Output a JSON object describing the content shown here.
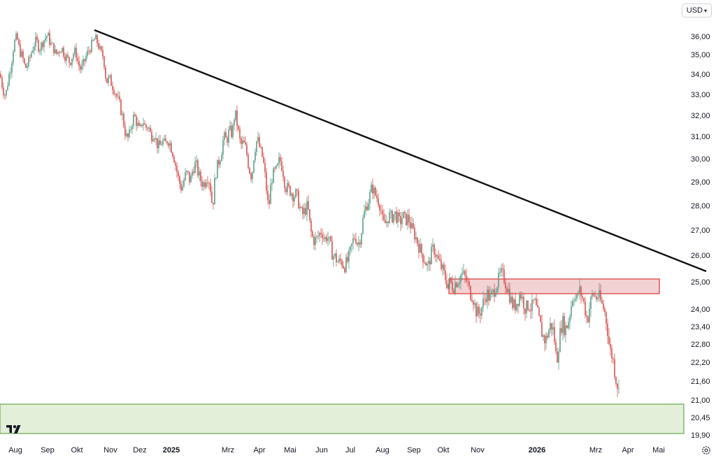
{
  "chart_data": {
    "type": "candlestick",
    "currency": "USD",
    "y_ticks": [
      "36,00",
      "35,00",
      "34,00",
      "33,00",
      "32,00",
      "31,00",
      "30,00",
      "29,00",
      "28,00",
      "27,00",
      "26,00",
      "25,00",
      "24,00",
      "23,40",
      "22,80",
      "22,20",
      "21,60",
      "21,00",
      "20,45",
      "19,90"
    ],
    "y_tick_values": [
      36.0,
      35.0,
      34.0,
      33.0,
      32.0,
      31.0,
      30.0,
      29.0,
      28.0,
      27.0,
      26.0,
      25.0,
      24.0,
      23.4,
      22.8,
      22.2,
      21.6,
      21.0,
      20.45,
      19.9
    ],
    "x_ticks": [
      {
        "label": "Aug",
        "bold": false
      },
      {
        "label": "Sep",
        "bold": false
      },
      {
        "label": "Okt",
        "bold": false
      },
      {
        "label": "Nov",
        "bold": false
      },
      {
        "label": "Dez",
        "bold": false
      },
      {
        "label": "2025",
        "bold": true
      },
      {
        "label": "Mrz",
        "bold": false
      },
      {
        "label": "Apr",
        "bold": false
      },
      {
        "label": "Mai",
        "bold": false
      },
      {
        "label": "Jun",
        "bold": false
      },
      {
        "label": "Jul",
        "bold": false
      },
      {
        "label": "Aug",
        "bold": false
      },
      {
        "label": "Sep",
        "bold": false
      },
      {
        "label": "Okt",
        "bold": false
      },
      {
        "label": "Nov",
        "bold": false
      },
      {
        "label": "2026",
        "bold": true
      },
      {
        "label": "Mrz",
        "bold": false
      },
      {
        "label": "Apr",
        "bold": false
      },
      {
        "label": "Mai",
        "bold": false
      }
    ],
    "close_path": [
      [
        0,
        34.0
      ],
      [
        4,
        33.3
      ],
      [
        8,
        32.9
      ],
      [
        12,
        33.8
      ],
      [
        16,
        34.5
      ],
      [
        20,
        35.6
      ],
      [
        24,
        36.0
      ],
      [
        28,
        35.2
      ],
      [
        32,
        34.9
      ],
      [
        36,
        34.3
      ],
      [
        40,
        34.5
      ],
      [
        44,
        35.0
      ],
      [
        48,
        35.5
      ],
      [
        52,
        35.8
      ],
      [
        56,
        35.3
      ],
      [
        60,
        35.6
      ],
      [
        64,
        35.9
      ],
      [
        68,
        36.1
      ],
      [
        72,
        35.6
      ],
      [
        76,
        35.4
      ],
      [
        80,
        35.0
      ],
      [
        84,
        35.2
      ],
      [
        88,
        35.4
      ],
      [
        92,
        35.0
      ],
      [
        96,
        34.8
      ],
      [
        100,
        34.6
      ],
      [
        104,
        35.0
      ],
      [
        108,
        35.2
      ],
      [
        112,
        34.5
      ],
      [
        116,
        34.2
      ],
      [
        120,
        34.6
      ],
      [
        124,
        35.0
      ],
      [
        128,
        35.3
      ],
      [
        132,
        35.6
      ],
      [
        136,
        35.9
      ],
      [
        140,
        35.6
      ],
      [
        144,
        35.1
      ],
      [
        148,
        34.9
      ],
      [
        152,
        33.6
      ],
      [
        156,
        33.8
      ],
      [
        160,
        33.5
      ],
      [
        164,
        33.2
      ],
      [
        168,
        32.8
      ],
      [
        172,
        32.4
      ],
      [
        176,
        31.8
      ],
      [
        180,
        31.0
      ],
      [
        184,
        30.9
      ],
      [
        188,
        31.6
      ],
      [
        192,
        32.0
      ],
      [
        196,
        31.6
      ],
      [
        200,
        31.2
      ],
      [
        204,
        31.8
      ],
      [
        208,
        31.4
      ],
      [
        212,
        31.5
      ],
      [
        216,
        31.0
      ],
      [
        220,
        31.2
      ],
      [
        224,
        30.7
      ],
      [
        228,
        30.5
      ],
      [
        232,
        30.8
      ],
      [
        236,
        30.6
      ],
      [
        240,
        30.9
      ],
      [
        244,
        30.6
      ],
      [
        248,
        30.2
      ],
      [
        252,
        29.6
      ],
      [
        256,
        29.0
      ],
      [
        260,
        28.7
      ],
      [
        264,
        29.2
      ],
      [
        268,
        29.4
      ],
      [
        272,
        29.0
      ],
      [
        276,
        29.6
      ],
      [
        280,
        29.8
      ],
      [
        284,
        29.3
      ],
      [
        288,
        29.0
      ],
      [
        292,
        28.9
      ],
      [
        296,
        29.3
      ],
      [
        300,
        29.0
      ],
      [
        304,
        27.9
      ],
      [
        308,
        29.3
      ],
      [
        312,
        29.8
      ],
      [
        316,
        30.2
      ],
      [
        320,
        31.0
      ],
      [
        324,
        30.8
      ],
      [
        328,
        31.3
      ],
      [
        332,
        31.1
      ],
      [
        336,
        32.2
      ],
      [
        340,
        31.4
      ],
      [
        344,
        30.6
      ],
      [
        348,
        30.7
      ],
      [
        352,
        30.4
      ],
      [
        356,
        29.6
      ],
      [
        360,
        29.2
      ],
      [
        364,
        30.4
      ],
      [
        368,
        30.9
      ],
      [
        372,
        30.4
      ],
      [
        376,
        30.0
      ],
      [
        380,
        29.0
      ],
      [
        384,
        27.8
      ],
      [
        388,
        29.1
      ],
      [
        392,
        29.4
      ],
      [
        396,
        29.5
      ],
      [
        400,
        30.0
      ],
      [
        404,
        29.6
      ],
      [
        408,
        28.8
      ],
      [
        412,
        28.7
      ],
      [
        416,
        28.6
      ],
      [
        420,
        28.4
      ],
      [
        424,
        28.5
      ],
      [
        428,
        28.0
      ],
      [
        432,
        27.6
      ],
      [
        436,
        27.8
      ],
      [
        440,
        28.0
      ],
      [
        444,
        27.0
      ],
      [
        448,
        26.6
      ],
      [
        452,
        26.6
      ],
      [
        456,
        26.8
      ],
      [
        460,
        27.0
      ],
      [
        464,
        26.6
      ],
      [
        468,
        26.8
      ],
      [
        472,
        26.4
      ],
      [
        476,
        26.0
      ],
      [
        480,
        25.9
      ],
      [
        484,
        25.7
      ],
      [
        488,
        25.8
      ],
      [
        492,
        25.6
      ],
      [
        496,
        25.7
      ],
      [
        500,
        26.0
      ],
      [
        504,
        26.5
      ],
      [
        508,
        26.8
      ],
      [
        512,
        26.4
      ],
      [
        516,
        26.8
      ],
      [
        520,
        27.6
      ],
      [
        524,
        28.0
      ],
      [
        528,
        28.3
      ],
      [
        532,
        28.8
      ],
      [
        536,
        28.5
      ],
      [
        540,
        28.3
      ],
      [
        544,
        28.0
      ],
      [
        548,
        27.2
      ],
      [
        552,
        27.3
      ],
      [
        556,
        27.6
      ],
      [
        560,
        27.5
      ],
      [
        564,
        27.7
      ],
      [
        568,
        27.5
      ],
      [
        572,
        27.3
      ],
      [
        576,
        27.6
      ],
      [
        580,
        27.4
      ],
      [
        584,
        27.5
      ],
      [
        588,
        27.1
      ],
      [
        592,
        26.9
      ],
      [
        596,
        26.6
      ],
      [
        600,
        26.3
      ],
      [
        604,
        26.0
      ],
      [
        608,
        25.8
      ],
      [
        612,
        25.5
      ],
      [
        616,
        26.0
      ],
      [
        620,
        26.3
      ],
      [
        624,
        26.0
      ],
      [
        628,
        25.7
      ],
      [
        632,
        25.5
      ],
      [
        636,
        25.2
      ],
      [
        640,
        24.9
      ],
      [
        644,
        25.0
      ],
      [
        648,
        24.8
      ],
      [
        652,
        25.0
      ],
      [
        656,
        25.1
      ],
      [
        660,
        25.3
      ],
      [
        664,
        25.2
      ],
      [
        668,
        25.0
      ],
      [
        672,
        24.6
      ],
      [
        676,
        24.5
      ],
      [
        680,
        24.0
      ],
      [
        684,
        23.8
      ],
      [
        688,
        24.0
      ],
      [
        692,
        24.3
      ],
      [
        696,
        24.6
      ],
      [
        700,
        24.4
      ],
      [
        704,
        24.5
      ],
      [
        708,
        24.8
      ],
      [
        712,
        25.0
      ],
      [
        716,
        25.3
      ],
      [
        720,
        25.2
      ],
      [
        724,
        24.9
      ],
      [
        728,
        24.6
      ],
      [
        732,
        24.2
      ],
      [
        736,
        24.1
      ],
      [
        740,
        24.3
      ],
      [
        744,
        24.6
      ],
      [
        748,
        24.3
      ],
      [
        752,
        24.0
      ],
      [
        756,
        24.2
      ],
      [
        760,
        24.0
      ],
      [
        764,
        24.3
      ],
      [
        768,
        23.9
      ],
      [
        772,
        23.5
      ],
      [
        776,
        23.1
      ],
      [
        780,
        22.9
      ],
      [
        784,
        23.2
      ],
      [
        788,
        23.5
      ],
      [
        792,
        23.2
      ],
      [
        796,
        22.2
      ],
      [
        800,
        23.0
      ],
      [
        804,
        23.6
      ],
      [
        808,
        23.3
      ],
      [
        812,
        23.5
      ],
      [
        816,
        24.0
      ],
      [
        820,
        24.6
      ],
      [
        824,
        24.3
      ],
      [
        828,
        24.7
      ],
      [
        832,
        24.5
      ],
      [
        836,
        24.1
      ],
      [
        840,
        23.6
      ],
      [
        844,
        24.2
      ],
      [
        848,
        24.6
      ],
      [
        852,
        24.4
      ],
      [
        856,
        24.5
      ],
      [
        860,
        24.2
      ],
      [
        864,
        24.0
      ],
      [
        868,
        23.5
      ],
      [
        872,
        22.6
      ],
      [
        876,
        22.4
      ],
      [
        880,
        21.8
      ],
      [
        884,
        21.4
      ],
      [
        886,
        21.1
      ]
    ]
  }
}
